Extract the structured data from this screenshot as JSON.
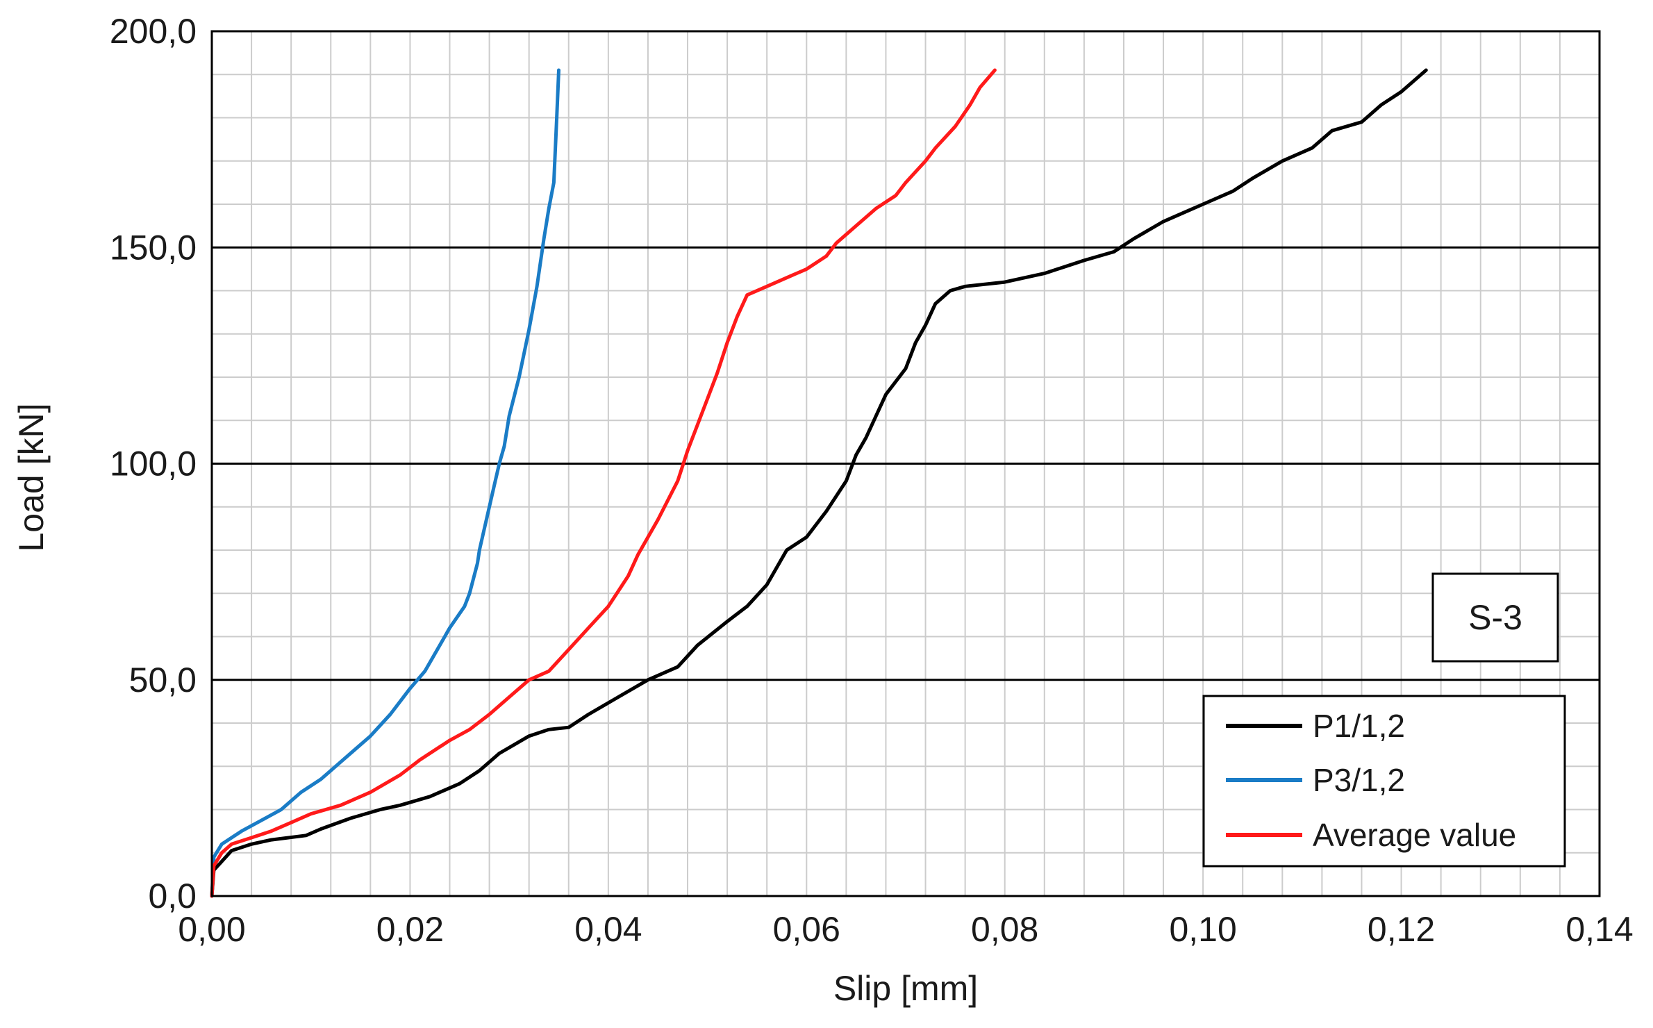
{
  "chart_data": {
    "type": "line",
    "title": "",
    "xlabel": "Slip  [mm]",
    "ylabel": "Load  [kN]",
    "xlim": [
      0,
      0.14
    ],
    "ylim": [
      0,
      200
    ],
    "x_ticks": [
      0,
      0.02,
      0.04,
      0.06,
      0.08,
      0.1,
      0.12,
      0.14
    ],
    "x_tick_labels": [
      "0,00",
      "0,02",
      "0,04",
      "0,06",
      "0,08",
      "0,10",
      "0,12",
      "0,14"
    ],
    "y_ticks": [
      0,
      50,
      100,
      150,
      200
    ],
    "y_tick_labels": [
      "0,0",
      "50,0",
      "100,0",
      "150,0",
      "200,0"
    ],
    "x_minor_step": 0.004,
    "y_minor_step": 10,
    "grid": true,
    "legend_position": "bottom-right",
    "annotation": "S-3",
    "series": [
      {
        "name": "P1/1,2",
        "color": "#000000",
        "points": [
          [
            0,
            0
          ],
          [
            0.0002,
            6
          ],
          [
            0.001,
            8
          ],
          [
            0.002,
            10.5
          ],
          [
            0.004,
            12
          ],
          [
            0.006,
            13
          ],
          [
            0.0095,
            14
          ],
          [
            0.011,
            15.5
          ],
          [
            0.014,
            18
          ],
          [
            0.017,
            20
          ],
          [
            0.019,
            21
          ],
          [
            0.022,
            23
          ],
          [
            0.025,
            26
          ],
          [
            0.027,
            29
          ],
          [
            0.029,
            33
          ],
          [
            0.032,
            37
          ],
          [
            0.034,
            38.5
          ],
          [
            0.036,
            39
          ],
          [
            0.038,
            42
          ],
          [
            0.041,
            46
          ],
          [
            0.044,
            50
          ],
          [
            0.047,
            53
          ],
          [
            0.049,
            58
          ],
          [
            0.052,
            63.5
          ],
          [
            0.054,
            67
          ],
          [
            0.056,
            72
          ],
          [
            0.058,
            80
          ],
          [
            0.06,
            83
          ],
          [
            0.062,
            89
          ],
          [
            0.064,
            96
          ],
          [
            0.065,
            102
          ],
          [
            0.066,
            106
          ],
          [
            0.067,
            111
          ],
          [
            0.068,
            116
          ],
          [
            0.07,
            122
          ],
          [
            0.071,
            128
          ],
          [
            0.072,
            132
          ],
          [
            0.073,
            137
          ],
          [
            0.0745,
            140
          ],
          [
            0.076,
            141
          ],
          [
            0.08,
            142
          ],
          [
            0.084,
            144
          ],
          [
            0.088,
            147
          ],
          [
            0.091,
            149
          ],
          [
            0.093,
            152
          ],
          [
            0.096,
            156
          ],
          [
            0.098,
            158
          ],
          [
            0.1,
            160
          ],
          [
            0.103,
            163
          ],
          [
            0.105,
            166
          ],
          [
            0.108,
            170
          ],
          [
            0.111,
            173
          ],
          [
            0.113,
            177
          ],
          [
            0.116,
            179
          ],
          [
            0.118,
            183
          ],
          [
            0.12,
            186
          ],
          [
            0.1225,
            191
          ]
        ]
      },
      {
        "name": "P3/1,2",
        "color": "#1a7cc6",
        "points": [
          [
            0,
            0
          ],
          [
            0.0002,
            9
          ],
          [
            0.001,
            12
          ],
          [
            0.002,
            13.5
          ],
          [
            0.003,
            15
          ],
          [
            0.005,
            17.5
          ],
          [
            0.007,
            20
          ],
          [
            0.009,
            24
          ],
          [
            0.011,
            27
          ],
          [
            0.013,
            31
          ],
          [
            0.016,
            37
          ],
          [
            0.018,
            42
          ],
          [
            0.02,
            48
          ],
          [
            0.0215,
            52
          ],
          [
            0.023,
            58
          ],
          [
            0.024,
            62
          ],
          [
            0.0255,
            67
          ],
          [
            0.026,
            70
          ],
          [
            0.0268,
            77
          ],
          [
            0.027,
            80
          ],
          [
            0.0278,
            88
          ],
          [
            0.0285,
            95
          ],
          [
            0.029,
            100
          ],
          [
            0.0295,
            104
          ],
          [
            0.03,
            111
          ],
          [
            0.031,
            120
          ],
          [
            0.032,
            131
          ],
          [
            0.0328,
            141
          ],
          [
            0.0335,
            152
          ],
          [
            0.034,
            159
          ],
          [
            0.0345,
            165
          ],
          [
            0.0348,
            180
          ],
          [
            0.035,
            191
          ]
        ]
      },
      {
        "name": "Average value",
        "color": "#ff1a1a",
        "points": [
          [
            0,
            0
          ],
          [
            0.0002,
            7
          ],
          [
            0.001,
            10
          ],
          [
            0.002,
            12
          ],
          [
            0.004,
            13.5
          ],
          [
            0.006,
            15
          ],
          [
            0.008,
            17
          ],
          [
            0.01,
            19
          ],
          [
            0.013,
            21
          ],
          [
            0.016,
            24
          ],
          [
            0.019,
            28
          ],
          [
            0.021,
            31.5
          ],
          [
            0.024,
            36
          ],
          [
            0.026,
            38.5
          ],
          [
            0.028,
            42
          ],
          [
            0.03,
            46
          ],
          [
            0.032,
            50
          ],
          [
            0.034,
            52
          ],
          [
            0.036,
            57
          ],
          [
            0.038,
            62
          ],
          [
            0.04,
            67
          ],
          [
            0.042,
            74
          ],
          [
            0.043,
            79
          ],
          [
            0.045,
            87
          ],
          [
            0.047,
            96
          ],
          [
            0.048,
            103
          ],
          [
            0.049,
            109
          ],
          [
            0.05,
            115
          ],
          [
            0.051,
            121
          ],
          [
            0.052,
            128
          ],
          [
            0.053,
            134
          ],
          [
            0.054,
            139
          ],
          [
            0.056,
            141
          ],
          [
            0.058,
            143
          ],
          [
            0.06,
            145
          ],
          [
            0.062,
            148
          ],
          [
            0.063,
            151
          ],
          [
            0.065,
            155
          ],
          [
            0.067,
            159
          ],
          [
            0.069,
            162
          ],
          [
            0.07,
            165
          ],
          [
            0.072,
            170
          ],
          [
            0.073,
            173
          ],
          [
            0.075,
            178
          ],
          [
            0.0765,
            183
          ],
          [
            0.0775,
            187
          ],
          [
            0.079,
            191
          ]
        ]
      }
    ]
  }
}
